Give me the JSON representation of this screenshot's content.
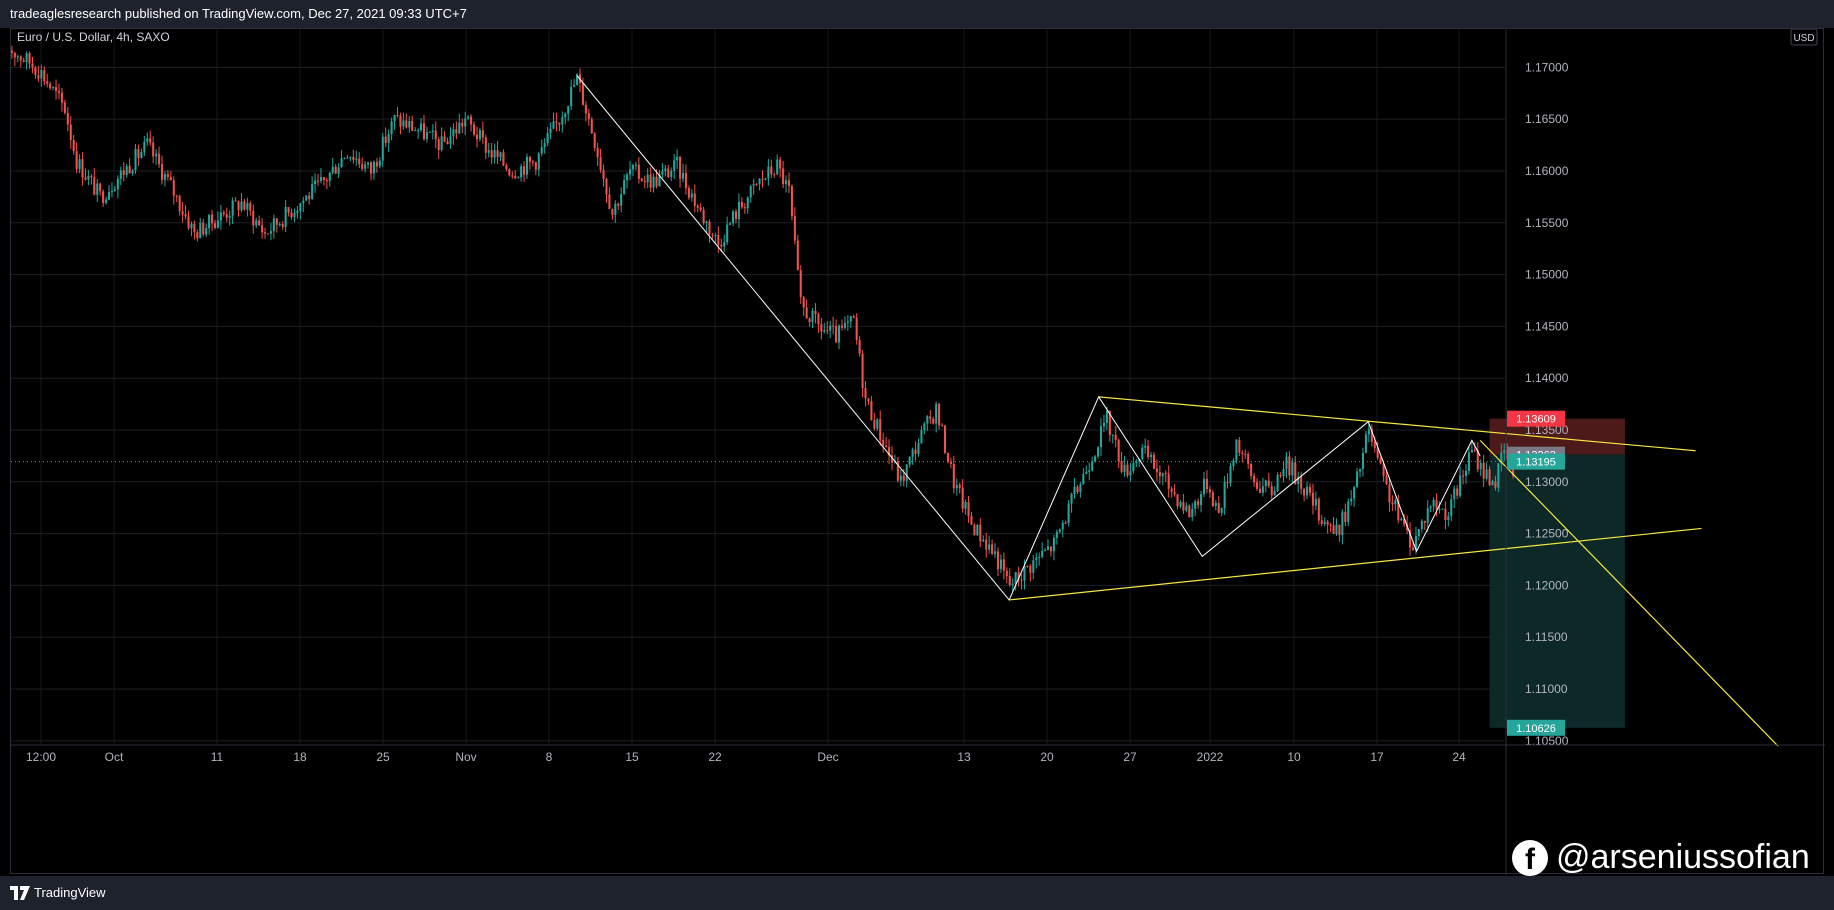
{
  "header": {
    "publisher_line": "tradeaglesresearch published on TradingView.com, Dec 27, 2021 09:33 UTC+7"
  },
  "symbol_line": "Euro / U.S. Dollar, 4h, SAXO",
  "currency_badge": "USD",
  "footer": {
    "brand": "TradingView"
  },
  "watermark": {
    "icon": "facebook-icon",
    "handle": "@arseniussofian"
  },
  "colors": {
    "up": "#26a69a",
    "down": "#ef5350",
    "pattern_line": "#ffffff",
    "trendline": "#f5e642",
    "stop_zone": "#5a1f1f",
    "target_zone": "#0d2e2b",
    "stop_label": "#f23645",
    "price_label": "#26a69a",
    "entry_label": "#787b86"
  },
  "chart_data": {
    "type": "candlestick",
    "title": "Euro / U.S. Dollar, 4h, SAXO",
    "x_ticks": [
      "12:00",
      "Oct",
      "11",
      "18",
      "25",
      "Nov",
      "8",
      "15",
      "22",
      "Dec",
      "13",
      "20",
      "27",
      "2022",
      "10",
      "17",
      "24"
    ],
    "y_ticks": [
      "1.10500",
      "1.11000",
      "1.11500",
      "1.12000",
      "1.12500",
      "1.13000",
      "1.13500",
      "1.14000",
      "1.14500",
      "1.15000",
      "1.15500",
      "1.16000",
      "1.16500",
      "1.17000"
    ],
    "ylim": [
      1.1046,
      1.1737
    ],
    "price_labels": [
      {
        "value": "1.13609",
        "kind": "stop"
      },
      {
        "value": "1.13262",
        "kind": "entry"
      },
      {
        "value": "1.13195",
        "kind": "last"
      },
      {
        "value": "1.10626",
        "kind": "target"
      }
    ],
    "last_price": 1.13195,
    "close_path": [
      [
        1.172,
        0
      ],
      [
        1.1705,
        2
      ],
      [
        1.1695,
        3
      ],
      [
        1.166,
        5
      ],
      [
        1.161,
        6
      ],
      [
        1.1575,
        8
      ],
      [
        1.16,
        10
      ],
      [
        1.1625,
        12
      ],
      [
        1.1585,
        14
      ],
      [
        1.154,
        16
      ],
      [
        1.1555,
        18
      ],
      [
        1.157,
        20
      ],
      [
        1.154,
        22
      ],
      [
        1.156,
        24
      ],
      [
        1.159,
        27
      ],
      [
        1.162,
        29
      ],
      [
        1.16,
        31
      ],
      [
        1.165,
        33
      ],
      [
        1.164,
        35
      ],
      [
        1.1625,
        37
      ],
      [
        1.165,
        39
      ],
      [
        1.162,
        41
      ],
      [
        1.16,
        43
      ],
      [
        1.161,
        45
      ],
      [
        1.165,
        47
      ],
      [
        1.169,
        48.5
      ],
      [
        1.163,
        50
      ],
      [
        1.156,
        51.5
      ],
      [
        1.16,
        53
      ],
      [
        1.159,
        55
      ],
      [
        1.1605,
        57
      ],
      [
        1.156,
        59
      ],
      [
        1.153,
        60.5
      ],
      [
        1.156,
        62
      ],
      [
        1.159,
        64
      ],
      [
        1.1605,
        65.5
      ],
      [
        1.158,
        66.5
      ],
      [
        1.147,
        67.5
      ],
      [
        1.145,
        69
      ],
      [
        1.144,
        70.5
      ],
      [
        1.1455,
        72
      ],
      [
        1.138,
        73
      ],
      [
        1.134,
        74.5
      ],
      [
        1.13,
        76
      ],
      [
        1.134,
        77.5
      ],
      [
        1.137,
        79
      ],
      [
        1.13,
        80.5
      ],
      [
        1.126,
        82
      ],
      [
        1.123,
        84
      ],
      [
        1.12,
        85.2
      ],
      [
        1.122,
        87
      ],
      [
        1.124,
        89
      ],
      [
        1.128,
        90.5
      ],
      [
        1.132,
        92
      ],
      [
        1.136,
        93.5
      ],
      [
        1.131,
        95
      ],
      [
        1.133,
        96.5
      ],
      [
        1.13,
        98.5
      ],
      [
        1.127,
        100.5
      ],
      [
        1.13,
        102
      ],
      [
        1.127,
        103
      ],
      [
        1.134,
        104.5
      ],
      [
        1.13,
        106
      ],
      [
        1.129,
        107.5
      ],
      [
        1.132,
        108.5
      ],
      [
        1.13,
        110
      ],
      [
        1.127,
        111.5
      ],
      [
        1.125,
        113
      ],
      [
        1.129,
        114.5
      ],
      [
        1.135,
        115.7
      ],
      [
        1.13,
        117
      ],
      [
        1.126,
        118.5
      ],
      [
        1.124,
        119.5
      ],
      [
        1.128,
        121
      ],
      [
        1.127,
        122.5
      ],
      [
        1.13,
        123.5
      ],
      [
        1.133,
        124.5
      ],
      [
        1.131,
        125.5
      ],
      [
        1.13,
        126.5
      ],
      [
        1.133,
        127.2
      ],
      [
        1.131,
        128
      ]
    ],
    "pattern_line": [
      [
        1.1692,
        48.5
      ],
      [
        1.1186,
        85.2
      ],
      [
        1.1382,
        92.8
      ],
      [
        1.1228,
        101.6
      ],
      [
        1.1358,
        115.7
      ],
      [
        1.1233,
        119.8
      ],
      [
        1.134,
        124.5
      ],
      [
        1.1325,
        125.2
      ]
    ],
    "trendlines": [
      {
        "from": [
          1.1382,
          92.8
        ],
        "to": [
          1.133,
          143.5
        ]
      },
      {
        "from": [
          1.1186,
          85.2
        ],
        "to": [
          1.1255,
          144.0
        ]
      },
      {
        "from": [
          1.134,
          125.2
        ],
        "to": [
          1.1045,
          150.5
        ]
      }
    ],
    "position": {
      "x_range": [
        126.0,
        137.5
      ],
      "stop": 1.13609,
      "entry": 1.13262,
      "target": 1.10626
    },
    "candle_index_range": [
      0,
      155
    ]
  }
}
